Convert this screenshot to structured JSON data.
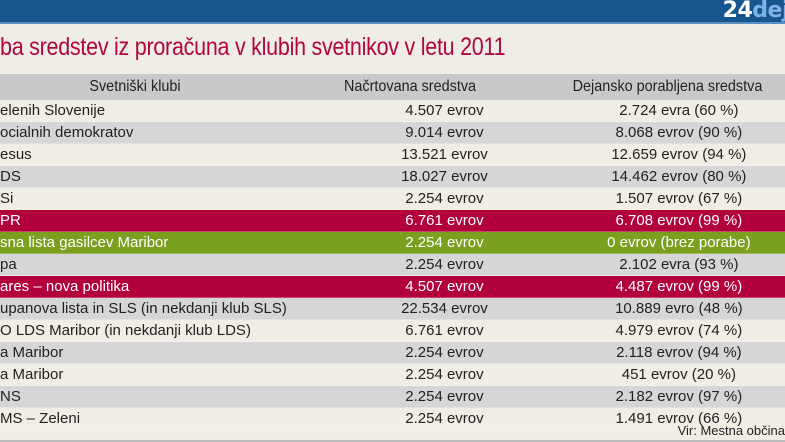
{
  "brand": {
    "logo_num": "24",
    "logo_word": "dej"
  },
  "title": "ba sredstev iz proračuna v klubih svetnikov v letu 2011",
  "table": {
    "headers": [
      "Svetniški klubi",
      "Načrtovana sredstva",
      "Dejansko porabljena sredstva"
    ],
    "rows": [
      {
        "club": "elenih Slovenije",
        "planned": "4.507 evrov",
        "actual": "2.724 evra (60 %)",
        "highlight": ""
      },
      {
        "club": "ocialnih demokratov",
        "planned": "9.014 evrov",
        "actual": "8.068 evrov (90 %)",
        "highlight": ""
      },
      {
        "club": "esus",
        "planned": "13.521 evrov",
        "actual": "12.659 evrov (94 %)",
        "highlight": ""
      },
      {
        "club": "DS",
        "planned": "18.027 evrov",
        "actual": "14.462 evrov (80 %)",
        "highlight": ""
      },
      {
        "club": "Si",
        "planned": "2.254 evrov",
        "actual": "1.507 evrov (67 %)",
        "highlight": ""
      },
      {
        "club": "PR",
        "planned": "6.761 evrov",
        "actual": "6.708 evrov (99 %)",
        "highlight": "red"
      },
      {
        "club": "sna lista gasilcev Maribor",
        "planned": "2.254 evrov",
        "actual": "0 evrov (brez porabe)",
        "highlight": "green"
      },
      {
        "club": "pa",
        "planned": "2.254 evrov",
        "actual": "2.102 evra (93 %)",
        "highlight": ""
      },
      {
        "club": "ares – nova politika",
        "planned": "4.507 evrov",
        "actual": "4.487 evrov (99 %)",
        "highlight": "red"
      },
      {
        "club": "upanova lista in SLS (in nekdanji klub SLS)",
        "planned": "22.534 evrov",
        "actual": "10.889 evro (48 %)",
        "highlight": ""
      },
      {
        "club": "O LDS Maribor (in nekdanji klub LDS)",
        "planned": "6.761 evrov",
        "actual": "4.979 evrov (74 %)",
        "highlight": ""
      },
      {
        "club": "a Maribor",
        "planned": "2.254 evrov",
        "actual": "2.118 evrov (94 %)",
        "highlight": ""
      },
      {
        "club": "a Maribor",
        "planned": "2.254 evrov",
        "actual": "451 evrov (20 %)",
        "highlight": ""
      },
      {
        "club": "NS",
        "planned": "2.254 evrov",
        "actual": "2.182 evrov (97 %)",
        "highlight": ""
      },
      {
        "club": "MS – Zeleni",
        "planned": "2.254 evrov",
        "actual": "1.491 evrov (66 %)",
        "highlight": ""
      }
    ]
  },
  "source": "Vir: Mestna občina",
  "colors": {
    "header_bar": "#17558f",
    "title": "#b0073f",
    "highlight_red": "#b1003b",
    "highlight_green": "#7b9f1f"
  }
}
